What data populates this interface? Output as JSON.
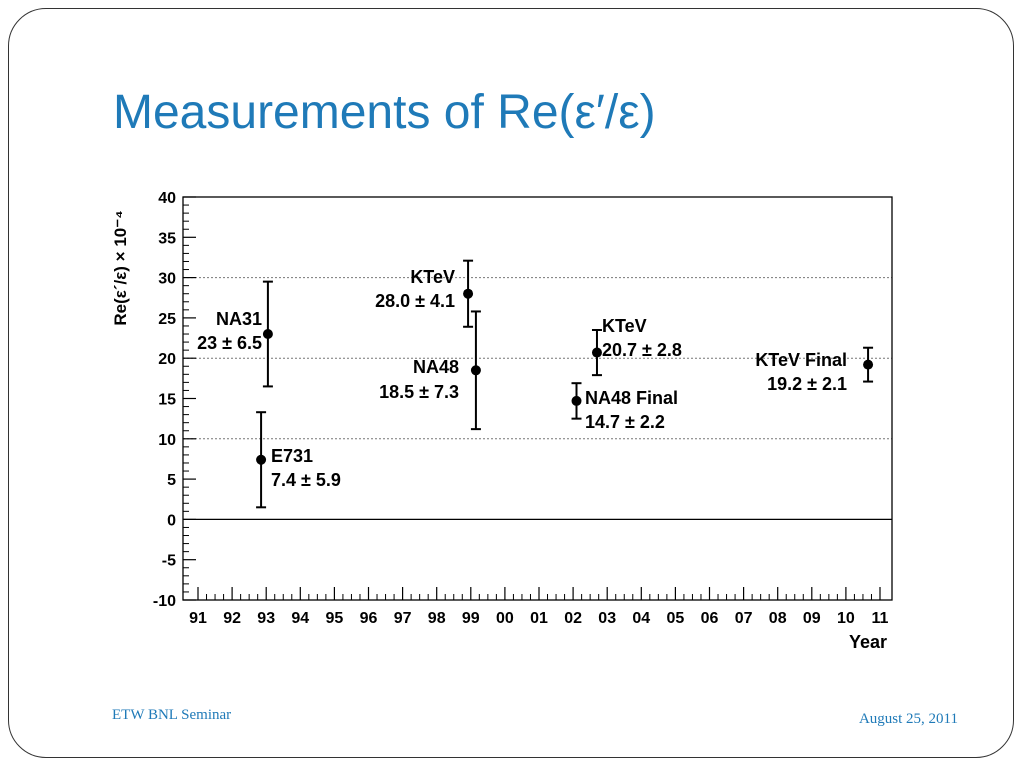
{
  "slide": {
    "title": "Measurements of Re(ε′/ε)",
    "footer_left": "ETW BNL Seminar",
    "footer_right": "August 25, 2011",
    "accent_color": "#1f7ab8"
  },
  "chart_data": {
    "type": "scatter",
    "title": "",
    "xlabel": "Year",
    "ylabel": "Re(ε´/ε)  × 10⁻⁴",
    "categories": [
      "91",
      "92",
      "93",
      "94",
      "95",
      "96",
      "97",
      "98",
      "99",
      "00",
      "01",
      "02",
      "03",
      "04",
      "05",
      "06",
      "07",
      "08",
      "09",
      "10",
      "11"
    ],
    "ylim": [
      -10,
      40
    ],
    "yticks": [
      -10,
      -5,
      0,
      5,
      10,
      15,
      20,
      25,
      30,
      35,
      40
    ],
    "grid_y": [
      10,
      20,
      30
    ],
    "zero_line": true,
    "points": [
      {
        "name": "NA31",
        "label": "23 ± 6.5",
        "x": 2.05,
        "y": 23.0,
        "err_low": 6.5,
        "err_high": 6.5
      },
      {
        "name": "E731",
        "label": "7.4 ± 5.9",
        "x": 1.85,
        "y": 7.4,
        "err_low": 5.9,
        "err_high": 5.9
      },
      {
        "name": "KTeV",
        "label": "28.0 ± 4.1",
        "x": 7.92,
        "y": 28.0,
        "err_low": 4.1,
        "err_high": 4.1
      },
      {
        "name": "NA48",
        "label": "18.5 ± 7.3",
        "x": 8.15,
        "y": 18.5,
        "err_low": 7.3,
        "err_high": 7.3
      },
      {
        "name": "NA48 Final",
        "label": "14.7 ± 2.2",
        "x": 11.1,
        "y": 14.7,
        "err_low": 2.2,
        "err_high": 2.2
      },
      {
        "name": "KTeV",
        "label": "20.7 ± 2.8",
        "x": 11.7,
        "y": 20.7,
        "err_low": 2.8,
        "err_high": 2.8
      },
      {
        "name": "KTeV Final",
        "label": "19.2 ± 2.1",
        "x": 19.65,
        "y": 19.2,
        "err_low": 2.1,
        "err_high": 2.1
      }
    ]
  }
}
